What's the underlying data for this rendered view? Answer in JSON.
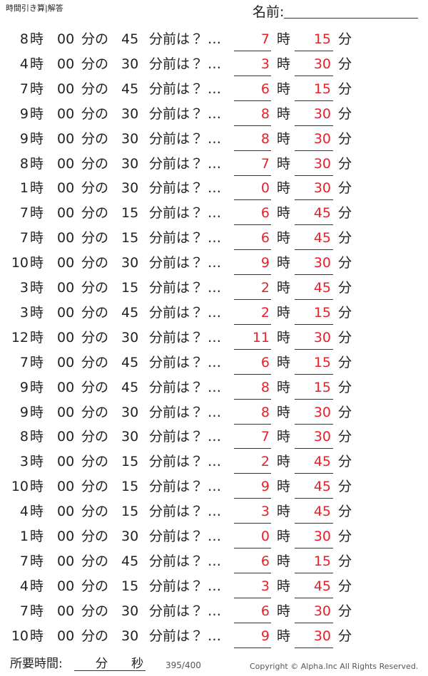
{
  "header": {
    "title": "時間引き算|解答",
    "name_label": "名前:"
  },
  "labels": {
    "hour": "時",
    "zero": "00",
    "min_of": "分の",
    "before": "分前は？ …",
    "min": "分"
  },
  "rows": [
    {
      "hour": 8,
      "minutes": 45,
      "answer_hour": 7,
      "answer_minutes": 15
    },
    {
      "hour": 4,
      "minutes": 30,
      "answer_hour": 3,
      "answer_minutes": 30
    },
    {
      "hour": 7,
      "minutes": 45,
      "answer_hour": 6,
      "answer_minutes": 15
    },
    {
      "hour": 9,
      "minutes": 30,
      "answer_hour": 8,
      "answer_minutes": 30
    },
    {
      "hour": 9,
      "minutes": 30,
      "answer_hour": 8,
      "answer_minutes": 30
    },
    {
      "hour": 8,
      "minutes": 30,
      "answer_hour": 7,
      "answer_minutes": 30
    },
    {
      "hour": 1,
      "minutes": 30,
      "answer_hour": 0,
      "answer_minutes": 30
    },
    {
      "hour": 7,
      "minutes": 15,
      "answer_hour": 6,
      "answer_minutes": 45
    },
    {
      "hour": 7,
      "minutes": 15,
      "answer_hour": 6,
      "answer_minutes": 45
    },
    {
      "hour": 10,
      "minutes": 30,
      "answer_hour": 9,
      "answer_minutes": 30
    },
    {
      "hour": 3,
      "minutes": 15,
      "answer_hour": 2,
      "answer_minutes": 45
    },
    {
      "hour": 3,
      "minutes": 45,
      "answer_hour": 2,
      "answer_minutes": 15
    },
    {
      "hour": 12,
      "minutes": 30,
      "answer_hour": 11,
      "answer_minutes": 30
    },
    {
      "hour": 7,
      "minutes": 45,
      "answer_hour": 6,
      "answer_minutes": 15
    },
    {
      "hour": 9,
      "minutes": 45,
      "answer_hour": 8,
      "answer_minutes": 15
    },
    {
      "hour": 9,
      "minutes": 30,
      "answer_hour": 8,
      "answer_minutes": 30
    },
    {
      "hour": 8,
      "minutes": 30,
      "answer_hour": 7,
      "answer_minutes": 30
    },
    {
      "hour": 3,
      "minutes": 15,
      "answer_hour": 2,
      "answer_minutes": 45
    },
    {
      "hour": 10,
      "minutes": 15,
      "answer_hour": 9,
      "answer_minutes": 45
    },
    {
      "hour": 4,
      "minutes": 15,
      "answer_hour": 3,
      "answer_minutes": 45
    },
    {
      "hour": 1,
      "minutes": 30,
      "answer_hour": 0,
      "answer_minutes": 30
    },
    {
      "hour": 7,
      "minutes": 45,
      "answer_hour": 6,
      "answer_minutes": 15
    },
    {
      "hour": 4,
      "minutes": 15,
      "answer_hour": 3,
      "answer_minutes": 45
    },
    {
      "hour": 7,
      "minutes": 30,
      "answer_hour": 6,
      "answer_minutes": 30
    },
    {
      "hour": 10,
      "minutes": 30,
      "answer_hour": 9,
      "answer_minutes": 30
    }
  ],
  "footer": {
    "time_label": "所要時間:",
    "min_label": "分",
    "sec_label": "秒",
    "page": "395/400",
    "copyright": "Copyright © Alpha.Inc All Rights Reserved."
  }
}
